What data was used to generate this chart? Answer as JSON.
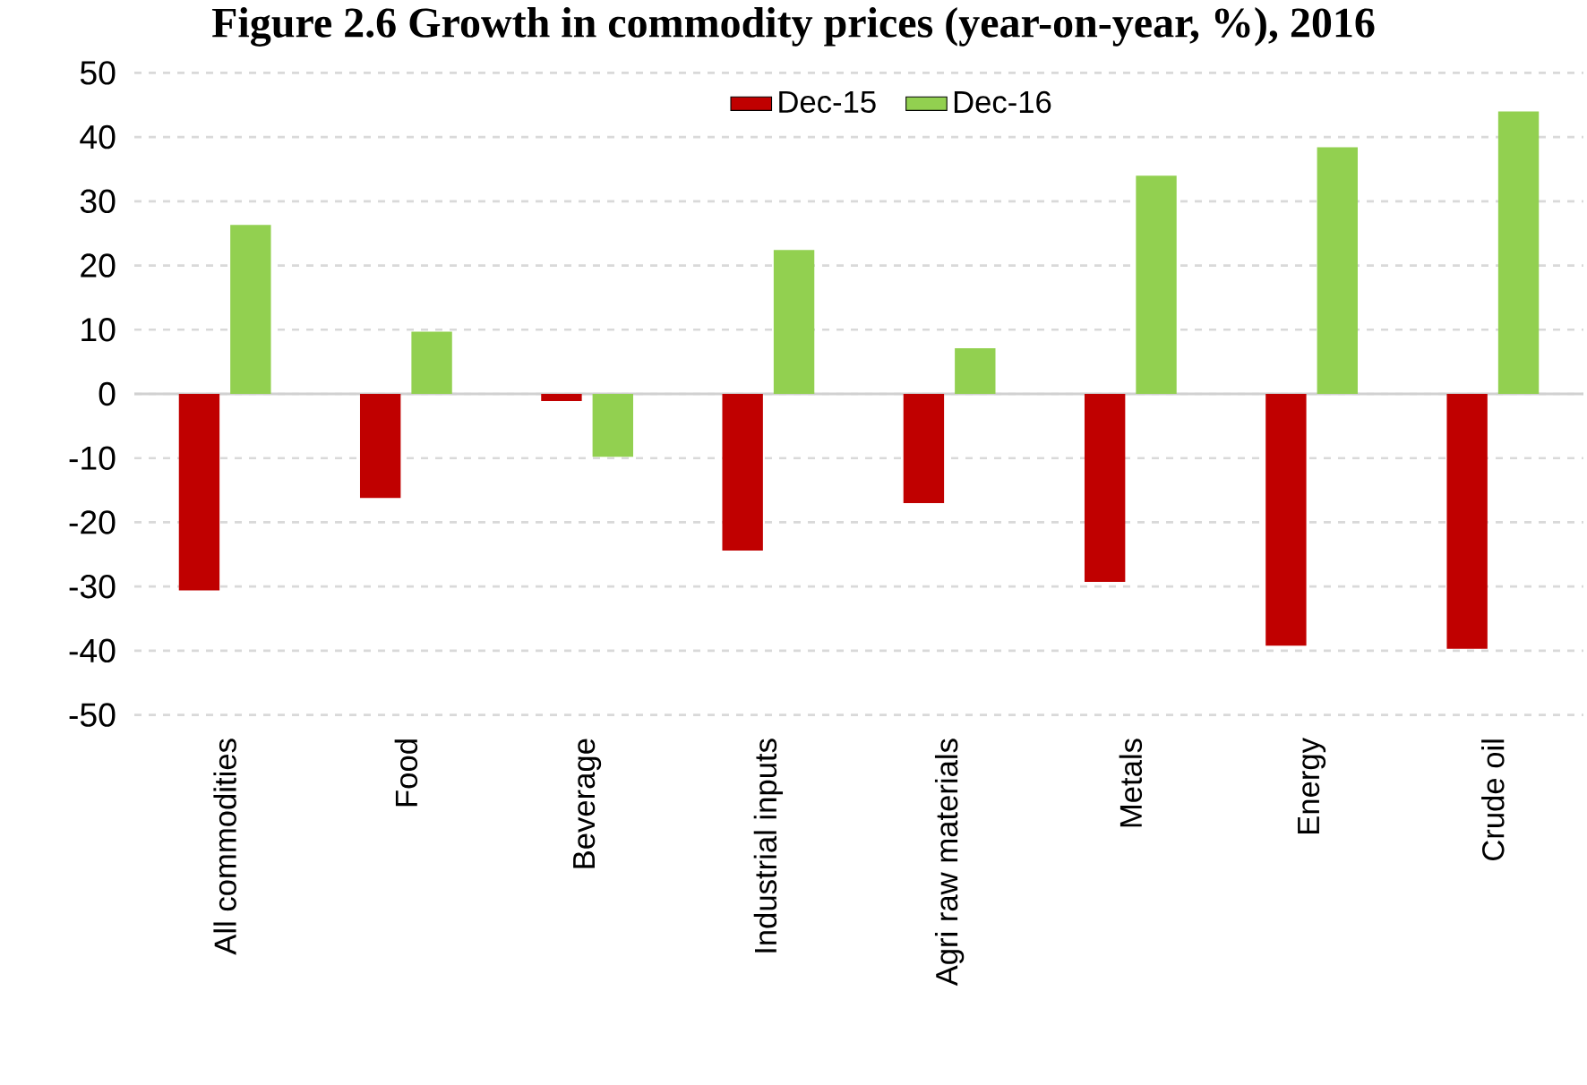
{
  "chart_data": {
    "type": "bar",
    "title": "Figure 2.6 Growth in commodity prices (year-on-year, %), 2016",
    "categories": [
      "All commodities",
      "Food",
      "Beverage",
      "Industrial inputs",
      "Agri raw materials",
      "Metals",
      "Energy",
      "Crude oil"
    ],
    "series": [
      {
        "name": "Dec-15",
        "color": "#c00000",
        "values": [
          -30.6,
          -16.2,
          -1.1,
          -24.4,
          -17.0,
          -29.3,
          -39.2,
          -39.7
        ]
      },
      {
        "name": "Dec-16",
        "color": "#92d050",
        "values": [
          26.3,
          9.7,
          -9.8,
          22.4,
          7.1,
          34.0,
          38.4,
          44.0
        ]
      }
    ],
    "ylim": [
      -50,
      50
    ],
    "yticks": [
      -50,
      -40,
      -30,
      -20,
      -10,
      0,
      10,
      20,
      30,
      40,
      50
    ],
    "grid": "y",
    "legend": "top"
  }
}
